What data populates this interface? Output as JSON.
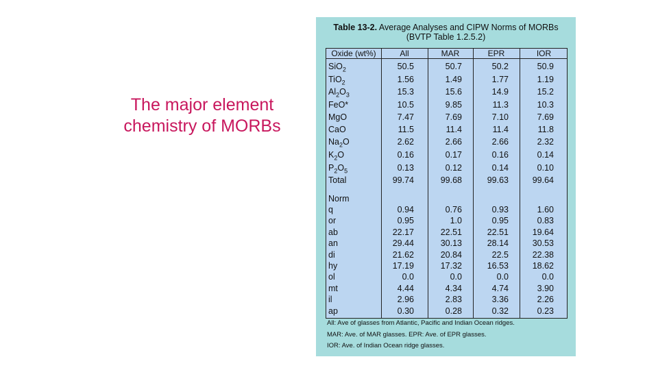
{
  "slide": {
    "heading_line1": "The major element",
    "heading_line2": "chemistry of MORBs"
  },
  "table": {
    "title_bold": "Table 13-2.",
    "title_rest": "Average Analyses and CIPW Norms of MORBs",
    "title_line2": "(BVTP Table 1.2.5.2)",
    "columns": [
      "Oxide (wt%)",
      "All",
      "MAR",
      "EPR",
      "IOR"
    ],
    "oxide_rows": [
      {
        "label": "SiO2",
        "values": [
          "50.5",
          "50.7",
          "50.2",
          "50.9"
        ]
      },
      {
        "label": "TiO2",
        "values": [
          "1.56",
          "1.49",
          "1.77",
          "1.19"
        ]
      },
      {
        "label": "Al2O3",
        "values": [
          "15.3",
          "15.6",
          "14.9",
          "15.2"
        ]
      },
      {
        "label": "FeO*",
        "values": [
          "10.5",
          "9.85",
          "11.3",
          "10.3"
        ]
      },
      {
        "label": "MgO",
        "values": [
          "7.47",
          "7.69",
          "7.10",
          "7.69"
        ]
      },
      {
        "label": "CaO",
        "values": [
          "11.5",
          "11.4",
          "11.4",
          "11.8"
        ]
      },
      {
        "label": "Na2O",
        "values": [
          "2.62",
          "2.66",
          "2.66",
          "2.32"
        ]
      },
      {
        "label": "K2O",
        "values": [
          "0.16",
          "0.17",
          "0.16",
          "0.14"
        ]
      },
      {
        "label": "P2O5",
        "values": [
          "0.13",
          "0.12",
          "0.14",
          "0.10"
        ]
      },
      {
        "label": "Total",
        "values": [
          "99.74",
          "99.68",
          "99.63",
          "99.64"
        ]
      }
    ],
    "norm_heading": "Norm",
    "norm_rows": [
      {
        "label": "q",
        "values": [
          "0.94",
          "0.76",
          "0.93",
          "1.60"
        ]
      },
      {
        "label": "or",
        "values": [
          "0.95",
          "1.0",
          "0.95",
          "0.83"
        ]
      },
      {
        "label": "ab",
        "values": [
          "22.17",
          "22.51",
          "22.51",
          "19.64"
        ]
      },
      {
        "label": "an",
        "values": [
          "29.44",
          "30.13",
          "28.14",
          "30.53"
        ]
      },
      {
        "label": "di",
        "values": [
          "21.62",
          "20.84",
          "22.5",
          "22.38"
        ]
      },
      {
        "label": "hy",
        "values": [
          "17.19",
          "17.32",
          "16.53",
          "18.62"
        ]
      },
      {
        "label": "ol",
        "values": [
          "0.0",
          "0.0",
          "0.0",
          "0.0"
        ]
      },
      {
        "label": "mt",
        "values": [
          "4.44",
          "4.34",
          "4.74",
          "3.90"
        ]
      },
      {
        "label": "il",
        "values": [
          "2.96",
          "2.83",
          "3.36",
          "2.26"
        ]
      },
      {
        "label": "ap",
        "values": [
          "0.30",
          "0.28",
          "0.32",
          "0.23"
        ]
      }
    ],
    "footnotes": [
      "All:  Ave of glasses from Atlantic, Pacific and Indian Ocean ridges.",
      "MAR:  Ave. of MAR glasses.  EPR:  Ave. of EPR glasses.",
      "IOR:  Ave. of Indian Ocean ridge glasses."
    ]
  }
}
